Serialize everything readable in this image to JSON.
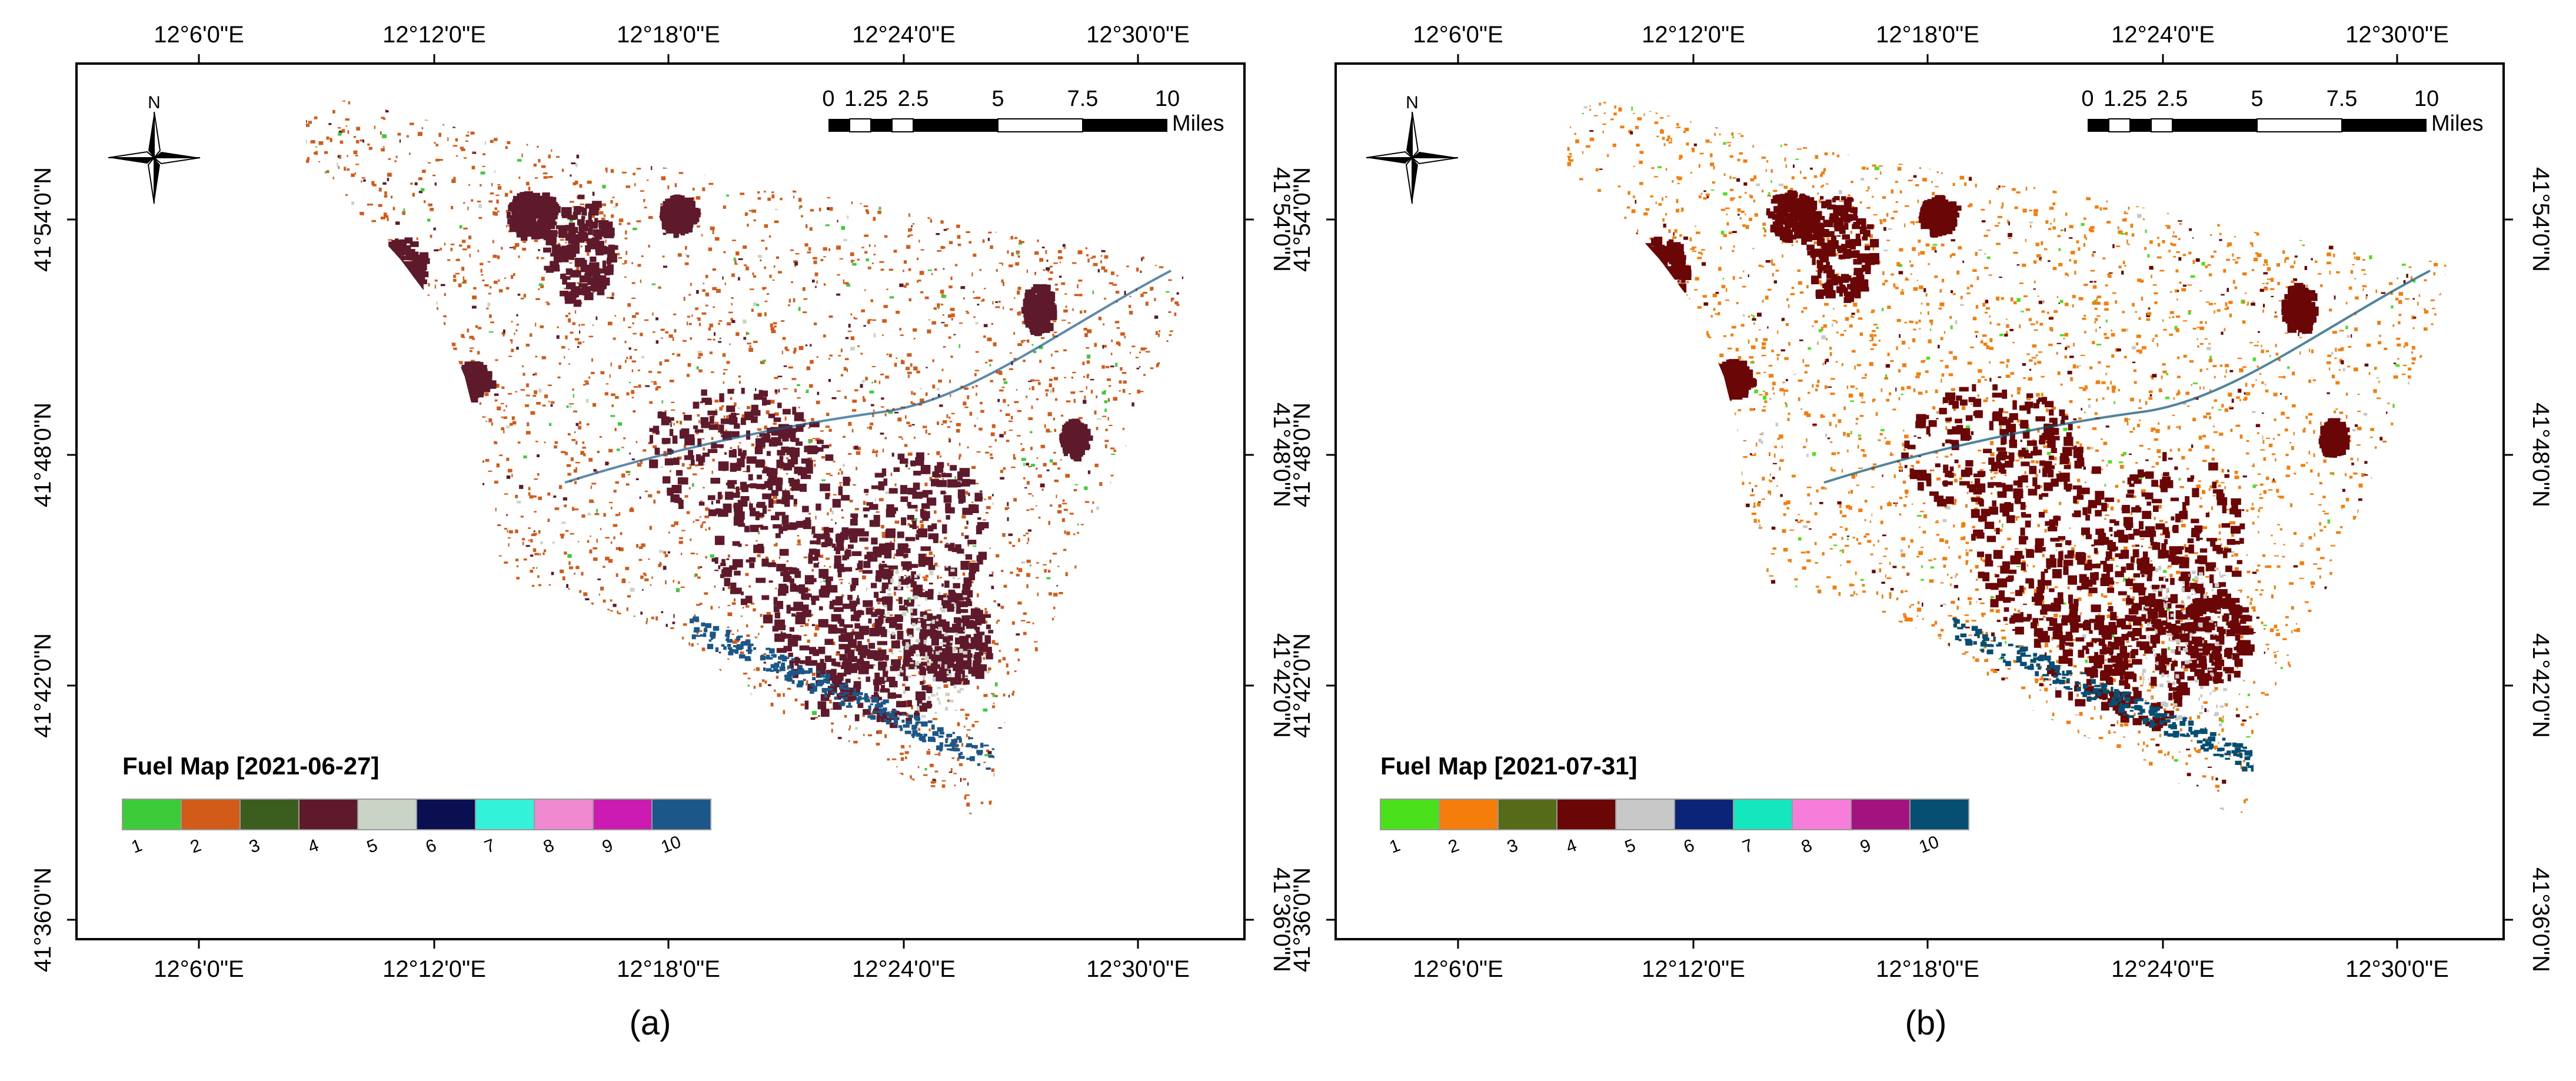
{
  "figure": {
    "panels": [
      {
        "id": "a",
        "caption": "(a)",
        "legend_title": "Fuel Map [2021-06-27]",
        "legend_colors": [
          "#3ccc3a",
          "#d35b1a",
          "#3b5e1f",
          "#5e1a2a",
          "#c9d3c6",
          "#0a0f52",
          "#33f2d9",
          "#f08ad0",
          "#cb1bb0",
          "#1b5788"
        ],
        "fuel_colors": {
          "dominant": "#d35b1a",
          "dark": "#5e1a2a",
          "water": "#1b5788",
          "light": "#c9d3c6",
          "green": "#3ccc3a"
        }
      },
      {
        "id": "b",
        "caption": "(b)",
        "legend_title": "Fuel Map [2021-07-31]",
        "legend_colors": [
          "#4ae01c",
          "#f57d0c",
          "#556b18",
          "#6b0606",
          "#c8c8c8",
          "#0c2478",
          "#14e7be",
          "#f77ddb",
          "#a3137f",
          "#064e72"
        ],
        "fuel_colors": {
          "dominant": "#f57d0c",
          "dark": "#6b0606",
          "water": "#064e72",
          "light": "#c8c8c8",
          "green": "#4ae01c"
        }
      }
    ],
    "legend_labels": [
      "1",
      "2",
      "3",
      "4",
      "5",
      "6",
      "7",
      "8",
      "9",
      "10"
    ],
    "lon_labels": [
      "12°6'0\"E",
      "12°12'0\"E",
      "12°18'0\"E",
      "12°24'0\"E",
      "12°30'0\"E"
    ],
    "lat_labels": [
      "41°54'0\"N",
      "41°48'0\"N",
      "41°42'0\"N",
      "41°36'0\"N"
    ],
    "scale_bar": {
      "ticks": [
        "0",
        "1.25",
        "2.5",
        "5",
        "7.5",
        "10"
      ],
      "unit": "Miles"
    },
    "north_label": "N"
  }
}
